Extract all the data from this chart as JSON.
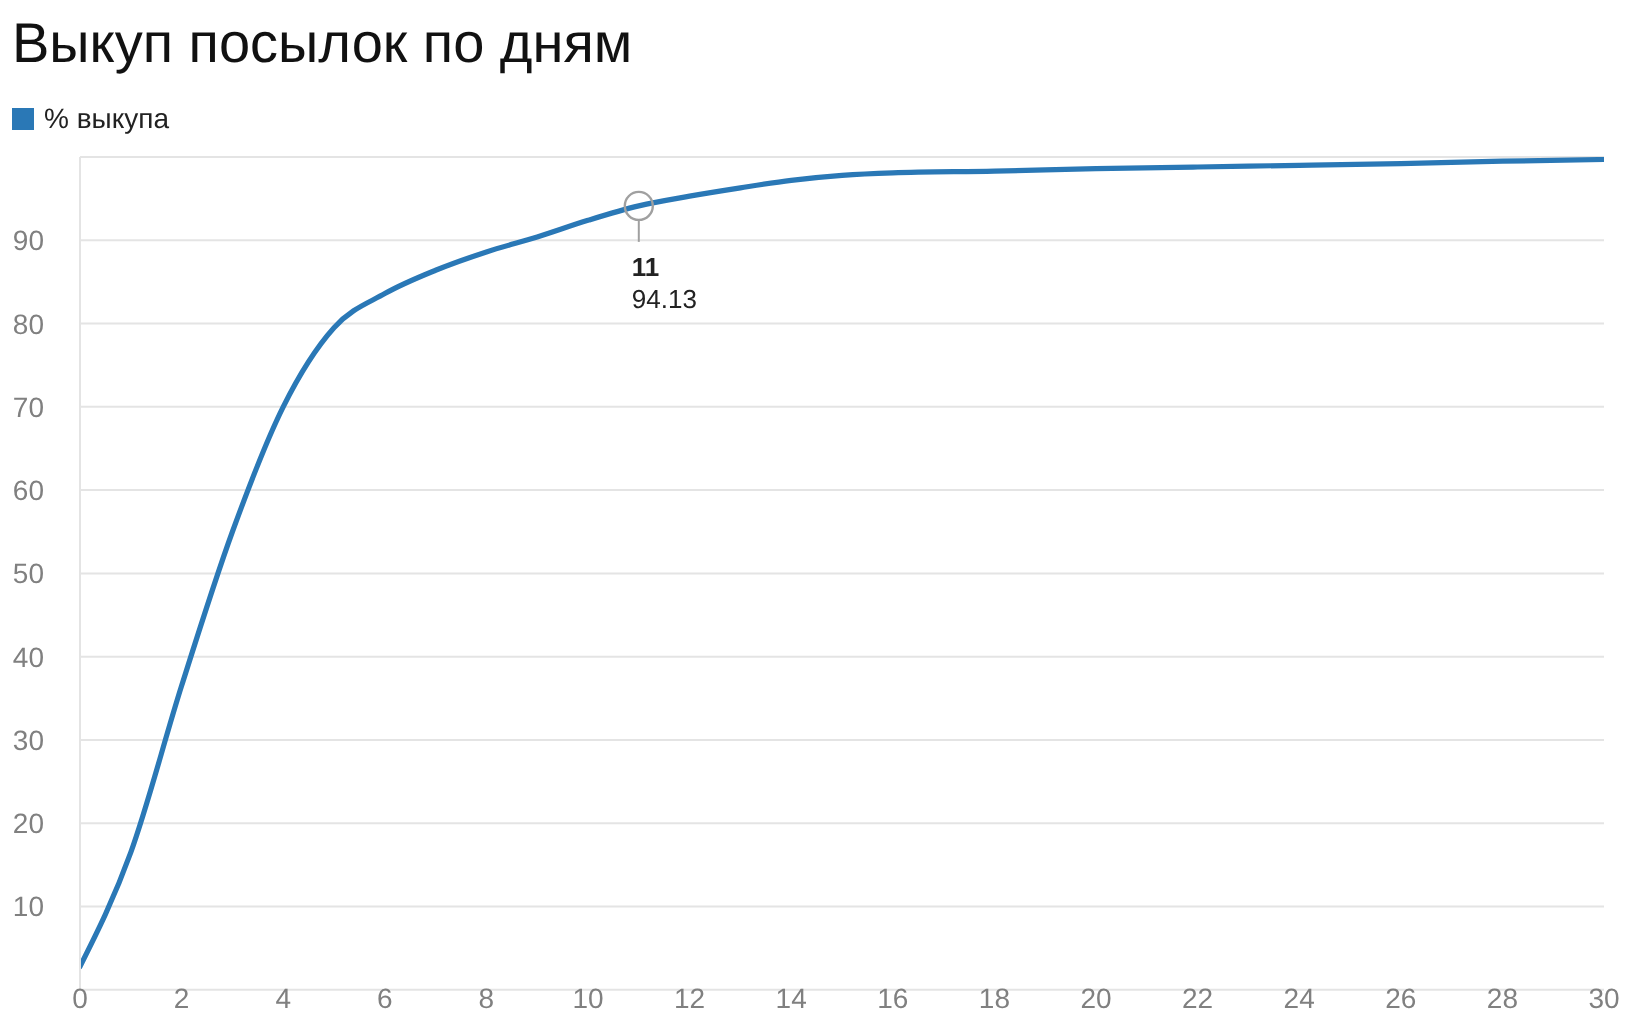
{
  "chart_data": {
    "type": "line",
    "title": "Выкуп посылок по дням",
    "x": [
      0,
      1,
      2,
      3,
      4,
      5,
      6,
      7,
      8,
      9,
      10,
      11,
      12,
      13,
      14,
      15,
      16,
      18,
      20,
      22,
      24,
      26,
      28,
      30
    ],
    "series": [
      {
        "name": "% выкупа",
        "color": "#2a78b6",
        "values": [
          2.8,
          16.5,
          36.5,
          55,
          70,
          79.5,
          83.6,
          86.4,
          88.6,
          90.4,
          92.4,
          94.13,
          95.3,
          96.3,
          97.2,
          97.8,
          98.1,
          98.3,
          98.6,
          98.8,
          99,
          99.2,
          99.5,
          99.7
        ]
      }
    ],
    "xlim": [
      0,
      30
    ],
    "xticks": [
      0,
      2,
      4,
      6,
      8,
      10,
      12,
      14,
      16,
      18,
      20,
      22,
      24,
      26,
      28,
      30
    ],
    "ylim": [
      0,
      100
    ],
    "yticks": [
      10,
      20,
      30,
      40,
      50,
      60,
      70,
      80,
      90
    ],
    "grid": "y",
    "legend": "top left",
    "marker": "none",
    "line_style": "solid",
    "annotations": [
      {
        "text": "11\n94.13",
        "x": 11,
        "y": 94.13
      }
    ]
  }
}
